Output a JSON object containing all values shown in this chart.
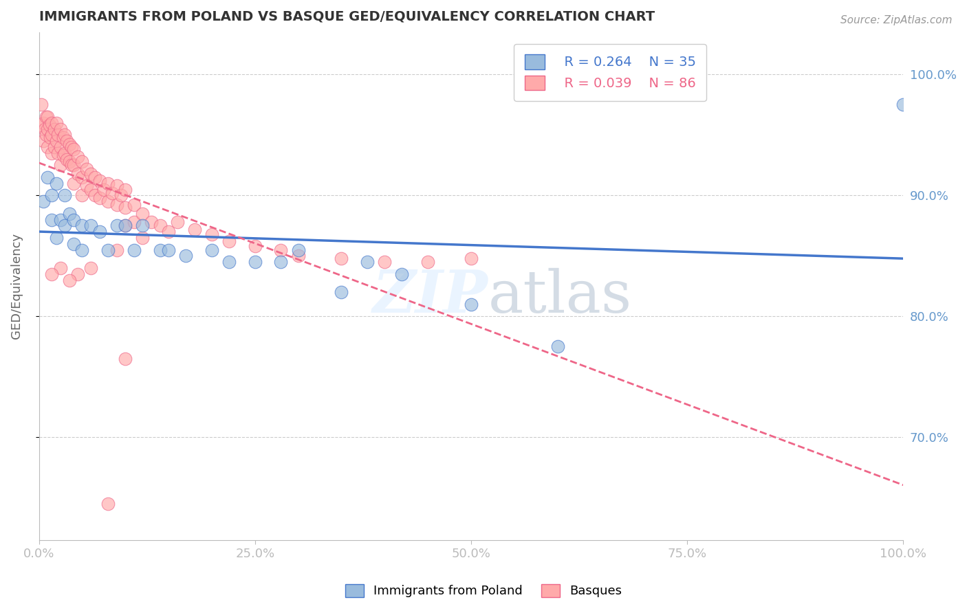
{
  "title": "IMMIGRANTS FROM POLAND VS BASQUE GED/EQUIVALENCY CORRELATION CHART",
  "source": "Source: ZipAtlas.com",
  "ylabel": "GED/Equivalency",
  "legend_label_blue": "Immigrants from Poland",
  "legend_label_pink": "Basques",
  "R_blue": 0.264,
  "N_blue": 35,
  "R_pink": 0.039,
  "N_pink": 86,
  "color_blue": "#99BBDD",
  "color_pink": "#FFAAAA",
  "color_blue_line": "#4477CC",
  "color_pink_line": "#EE6688",
  "color_axis_labels": "#6699CC",
  "color_title": "#333333",
  "background": "#FFFFFF",
  "grid_color": "#CCCCCC",
  "ytick_labels": [
    "70.0%",
    "80.0%",
    "90.0%",
    "100.0%"
  ],
  "ytick_values": [
    0.7,
    0.8,
    0.9,
    1.0
  ],
  "xtick_labels": [
    "0.0%",
    "25.0%",
    "50.0%",
    "75.0%",
    "100.0%"
  ],
  "xtick_values": [
    0.0,
    0.25,
    0.5,
    0.75,
    1.0
  ],
  "blue_x": [
    0.005,
    0.01,
    0.015,
    0.015,
    0.02,
    0.02,
    0.025,
    0.03,
    0.03,
    0.035,
    0.04,
    0.04,
    0.05,
    0.05,
    0.06,
    0.07,
    0.08,
    0.09,
    0.1,
    0.11,
    0.12,
    0.14,
    0.15,
    0.17,
    0.2,
    0.22,
    0.25,
    0.28,
    0.3,
    0.35,
    0.38,
    0.42,
    0.5,
    0.6,
    1.0
  ],
  "blue_y": [
    0.895,
    0.915,
    0.9,
    0.88,
    0.91,
    0.865,
    0.88,
    0.9,
    0.875,
    0.885,
    0.88,
    0.86,
    0.875,
    0.855,
    0.875,
    0.87,
    0.855,
    0.875,
    0.875,
    0.855,
    0.875,
    0.855,
    0.855,
    0.85,
    0.855,
    0.845,
    0.845,
    0.845,
    0.855,
    0.82,
    0.845,
    0.835,
    0.81,
    0.775,
    0.975
  ],
  "pink_x": [
    0.003,
    0.003,
    0.005,
    0.005,
    0.007,
    0.008,
    0.008,
    0.01,
    0.01,
    0.01,
    0.012,
    0.013,
    0.015,
    0.015,
    0.015,
    0.018,
    0.018,
    0.02,
    0.02,
    0.022,
    0.022,
    0.025,
    0.025,
    0.025,
    0.028,
    0.028,
    0.03,
    0.03,
    0.032,
    0.032,
    0.035,
    0.035,
    0.038,
    0.038,
    0.04,
    0.04,
    0.04,
    0.045,
    0.045,
    0.05,
    0.05,
    0.05,
    0.055,
    0.055,
    0.06,
    0.06,
    0.065,
    0.065,
    0.07,
    0.07,
    0.075,
    0.08,
    0.08,
    0.085,
    0.09,
    0.09,
    0.095,
    0.1,
    0.1,
    0.1,
    0.11,
    0.11,
    0.12,
    0.13,
    0.14,
    0.15,
    0.16,
    0.18,
    0.2,
    0.22,
    0.25,
    0.28,
    0.3,
    0.35,
    0.4,
    0.45,
    0.5,
    0.09,
    0.12,
    0.06,
    0.045,
    0.035,
    0.025,
    0.015,
    0.1,
    0.08
  ],
  "pink_y": [
    0.975,
    0.958,
    0.96,
    0.945,
    0.955,
    0.965,
    0.95,
    0.965,
    0.955,
    0.94,
    0.958,
    0.948,
    0.96,
    0.95,
    0.935,
    0.955,
    0.94,
    0.96,
    0.945,
    0.95,
    0.935,
    0.955,
    0.94,
    0.925,
    0.948,
    0.933,
    0.95,
    0.935,
    0.945,
    0.93,
    0.942,
    0.928,
    0.94,
    0.925,
    0.938,
    0.925,
    0.91,
    0.932,
    0.918,
    0.928,
    0.915,
    0.9,
    0.922,
    0.908,
    0.918,
    0.905,
    0.915,
    0.9,
    0.912,
    0.898,
    0.905,
    0.91,
    0.895,
    0.902,
    0.908,
    0.892,
    0.9,
    0.905,
    0.89,
    0.875,
    0.892,
    0.878,
    0.885,
    0.878,
    0.875,
    0.87,
    0.878,
    0.872,
    0.868,
    0.862,
    0.858,
    0.855,
    0.85,
    0.848,
    0.845,
    0.845,
    0.848,
    0.855,
    0.865,
    0.84,
    0.835,
    0.83,
    0.84,
    0.835,
    0.765,
    0.645
  ]
}
